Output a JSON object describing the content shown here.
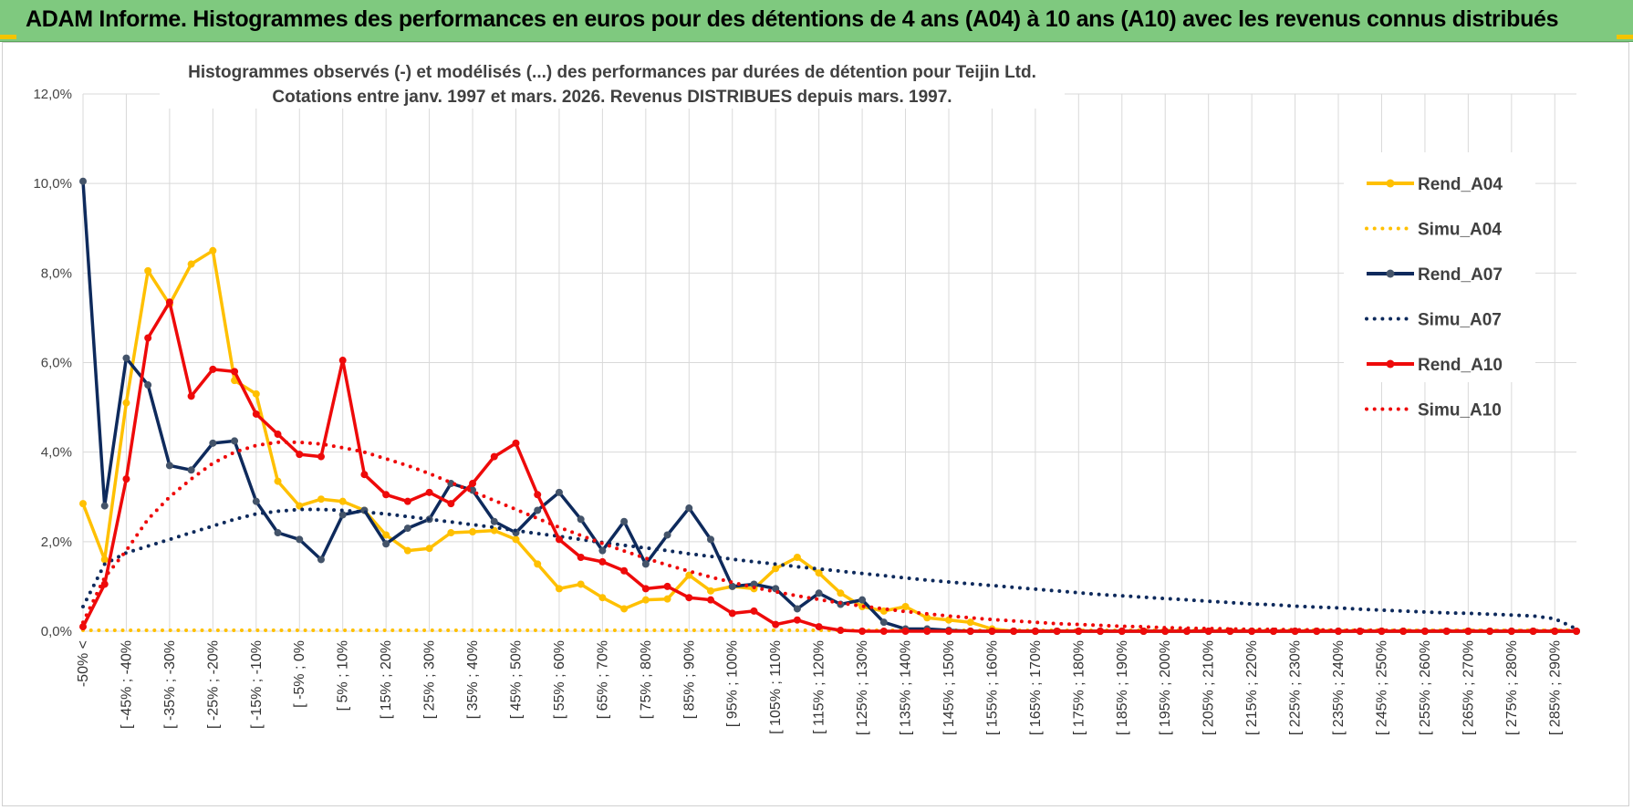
{
  "banner": {
    "title": "ADAM Informe. Histogrammes des performances en euros pour des détentions de 4 ans (A04) à 10 ans (A10) avec les revenus connus distribués",
    "background": "#7fc97f"
  },
  "chart_data": {
    "type": "line",
    "title_line1": "Histogrammes observés (-) et modélisés (...) des performances par durées de détention pour Teijin Ltd.",
    "title_line2": "Cotations entre janv. 1997 et mars. 2026. Revenus DISTRIBUES depuis mars. 1997.",
    "ylim": [
      0,
      12
    ],
    "y_ticks": [
      "0,0%",
      "2,0%",
      "4,0%",
      "6,0%",
      "8,0%",
      "10,0%",
      "12,0%"
    ],
    "x_labels": [
      "-50% <",
      "[ -45% ; -40%",
      "[ -35% ; -30%",
      "[ -25% ; -20%",
      "[ -15% ; -10%",
      "[ -5% ; 0%",
      "[ 5% ; 10%",
      "[ 15% ; 20%",
      "[ 25% ; 30%",
      "[ 35% ; 40%",
      "[ 45% ; 50%",
      "[ 55% ; 60%",
      "[ 65% ; 70%",
      "[ 75% ; 80%",
      "[ 85% ; 90%",
      "[ 95% ; 100%",
      "[ 105% ; 110%",
      "[ 115% ; 120%",
      "[ 125% ; 130%",
      "[ 135% ; 140%",
      "[ 145% ; 150%",
      "[ 155% ; 160%",
      "[ 165% ; 170%",
      "[ 175% ; 180%",
      "[ 185% ; 190%",
      "[ 195% ; 200%",
      "[ 205% ; 210%",
      "[ 215% ; 220%",
      "[ 225% ; 230%",
      "[ 235% ; 240%",
      "[ 245% ; 250%",
      "[ 255% ; 260%",
      "[ 265% ; 270%",
      "[ 275% ; 280%",
      "[ 285% ; 290%"
    ],
    "n_points": 70,
    "series": [
      {
        "name": "Rend_A04",
        "style": "solid",
        "color": "#ffc000",
        "values": [
          2.85,
          1.6,
          5.1,
          8.05,
          7.3,
          8.2,
          8.5,
          5.6,
          5.3,
          3.35,
          2.8,
          2.95,
          2.9,
          2.7,
          2.15,
          1.8,
          1.85,
          2.2,
          2.22,
          2.25,
          2.05,
          1.5,
          0.95,
          1.05,
          0.75,
          0.5,
          0.7,
          0.72,
          1.25,
          0.9,
          1.0,
          0.95,
          1.4,
          1.65,
          1.3,
          0.85,
          0.55,
          0.45,
          0.55,
          0.3,
          0.25,
          0.2,
          0.05,
          0,
          0,
          0,
          0,
          0,
          0,
          0,
          0,
          0,
          0,
          0,
          0,
          0,
          0,
          0,
          0,
          0,
          0,
          0,
          0,
          0,
          0,
          0,
          0,
          0,
          0,
          0
        ]
      },
      {
        "name": "Simu_A04",
        "style": "dotted",
        "color": "#ffc000",
        "values": [
          0.02,
          0.02,
          0.02,
          0.02,
          0.02,
          0.02,
          0.02,
          0.02,
          0.02,
          0.02,
          0.02,
          0.02,
          0.02,
          0.02,
          0.02,
          0.02,
          0.02,
          0.02,
          0.02,
          0.02,
          0.02,
          0.02,
          0.02,
          0.02,
          0.02,
          0.02,
          0.02,
          0.02,
          0.02,
          0.02,
          0.02,
          0.02,
          0.02,
          0.02,
          0.02,
          0.02,
          0.02,
          0.02,
          0.02,
          0.02,
          0.02,
          0.02,
          0.02,
          0.02,
          0.02,
          0.02,
          0.02,
          0.02,
          0.02,
          0.02,
          0.02,
          0.02,
          0.02,
          0.02,
          0.02,
          0.02,
          0.02,
          0.02,
          0.02,
          0.02,
          0.02,
          0.02,
          0.02,
          0.02,
          0.02,
          0.02,
          0.02,
          0.02,
          0.02,
          0.02
        ]
      },
      {
        "name": "Rend_A07",
        "style": "solid",
        "color": "#0e2a5c",
        "values": [
          10.05,
          2.8,
          6.1,
          5.5,
          3.7,
          3.6,
          4.2,
          4.25,
          2.9,
          2.2,
          2.05,
          1.6,
          2.6,
          2.7,
          1.95,
          2.3,
          2.5,
          3.3,
          3.15,
          2.45,
          2.2,
          2.7,
          3.1,
          2.5,
          1.8,
          2.45,
          1.5,
          2.15,
          2.75,
          2.05,
          1.0,
          1.05,
          0.95,
          0.5,
          0.85,
          0.6,
          0.7,
          0.2,
          0.05,
          0.05,
          0.02,
          0,
          0,
          0,
          0,
          0,
          0,
          0,
          0,
          0,
          0,
          0,
          0,
          0,
          0,
          0,
          0,
          0,
          0,
          0,
          0,
          0,
          0,
          0,
          0,
          0,
          0,
          0,
          0,
          0
        ]
      },
      {
        "name": "Simu_A07",
        "style": "dotted",
        "color": "#0e2a5c",
        "values": [
          0.55,
          1.5,
          1.75,
          1.9,
          2.05,
          2.2,
          2.35,
          2.5,
          2.62,
          2.68,
          2.72,
          2.72,
          2.7,
          2.66,
          2.62,
          2.56,
          2.5,
          2.44,
          2.38,
          2.32,
          2.25,
          2.18,
          2.12,
          2.05,
          1.98,
          1.92,
          1.86,
          1.8,
          1.73,
          1.67,
          1.61,
          1.55,
          1.5,
          1.44,
          1.39,
          1.34,
          1.29,
          1.24,
          1.19,
          1.14,
          1.1,
          1.06,
          1.02,
          0.98,
          0.94,
          0.9,
          0.86,
          0.82,
          0.79,
          0.76,
          0.73,
          0.7,
          0.67,
          0.64,
          0.61,
          0.59,
          0.56,
          0.54,
          0.52,
          0.49,
          0.47,
          0.45,
          0.43,
          0.41,
          0.4,
          0.38,
          0.36,
          0.34,
          0.28,
          0.05
        ]
      },
      {
        "name": "Rend_A10",
        "style": "solid",
        "color": "#ee0a0a",
        "values": [
          0.1,
          1.05,
          3.4,
          6.55,
          7.35,
          5.25,
          5.85,
          5.8,
          4.85,
          4.4,
          3.95,
          3.9,
          6.05,
          3.5,
          3.05,
          2.9,
          3.1,
          2.85,
          3.3,
          3.9,
          4.2,
          3.05,
          2.05,
          1.65,
          1.55,
          1.35,
          0.95,
          1.0,
          0.75,
          0.7,
          0.4,
          0.45,
          0.15,
          0.25,
          0.1,
          0.02,
          0,
          0,
          0,
          0,
          0,
          0,
          0,
          0,
          0,
          0,
          0,
          0,
          0,
          0,
          0,
          0,
          0,
          0,
          0,
          0,
          0,
          0,
          0,
          0,
          0,
          0,
          0,
          0,
          0,
          0,
          0,
          0,
          0,
          0
        ]
      },
      {
        "name": "Simu_A10",
        "style": "dotted",
        "color": "#ee0a0a",
        "values": [
          0.2,
          1.2,
          1.8,
          2.5,
          3.0,
          3.4,
          3.75,
          4.0,
          4.15,
          4.22,
          4.22,
          4.18,
          4.1,
          4.0,
          3.85,
          3.7,
          3.52,
          3.32,
          3.12,
          2.92,
          2.72,
          2.52,
          2.32,
          2.14,
          1.96,
          1.79,
          1.63,
          1.48,
          1.34,
          1.21,
          1.09,
          0.98,
          0.88,
          0.79,
          0.71,
          0.63,
          0.56,
          0.5,
          0.44,
          0.39,
          0.34,
          0.3,
          0.26,
          0.23,
          0.2,
          0.17,
          0.15,
          0.13,
          0.11,
          0.1,
          0.08,
          0.07,
          0.06,
          0.05,
          0.04,
          0.04,
          0.03,
          0.03,
          0.02,
          0.02,
          0.02,
          0.01,
          0.01,
          0.01,
          0.01,
          0.01,
          0.01,
          0.01,
          0.01,
          0.01
        ]
      }
    ],
    "legend": {
      "position": "right"
    }
  }
}
